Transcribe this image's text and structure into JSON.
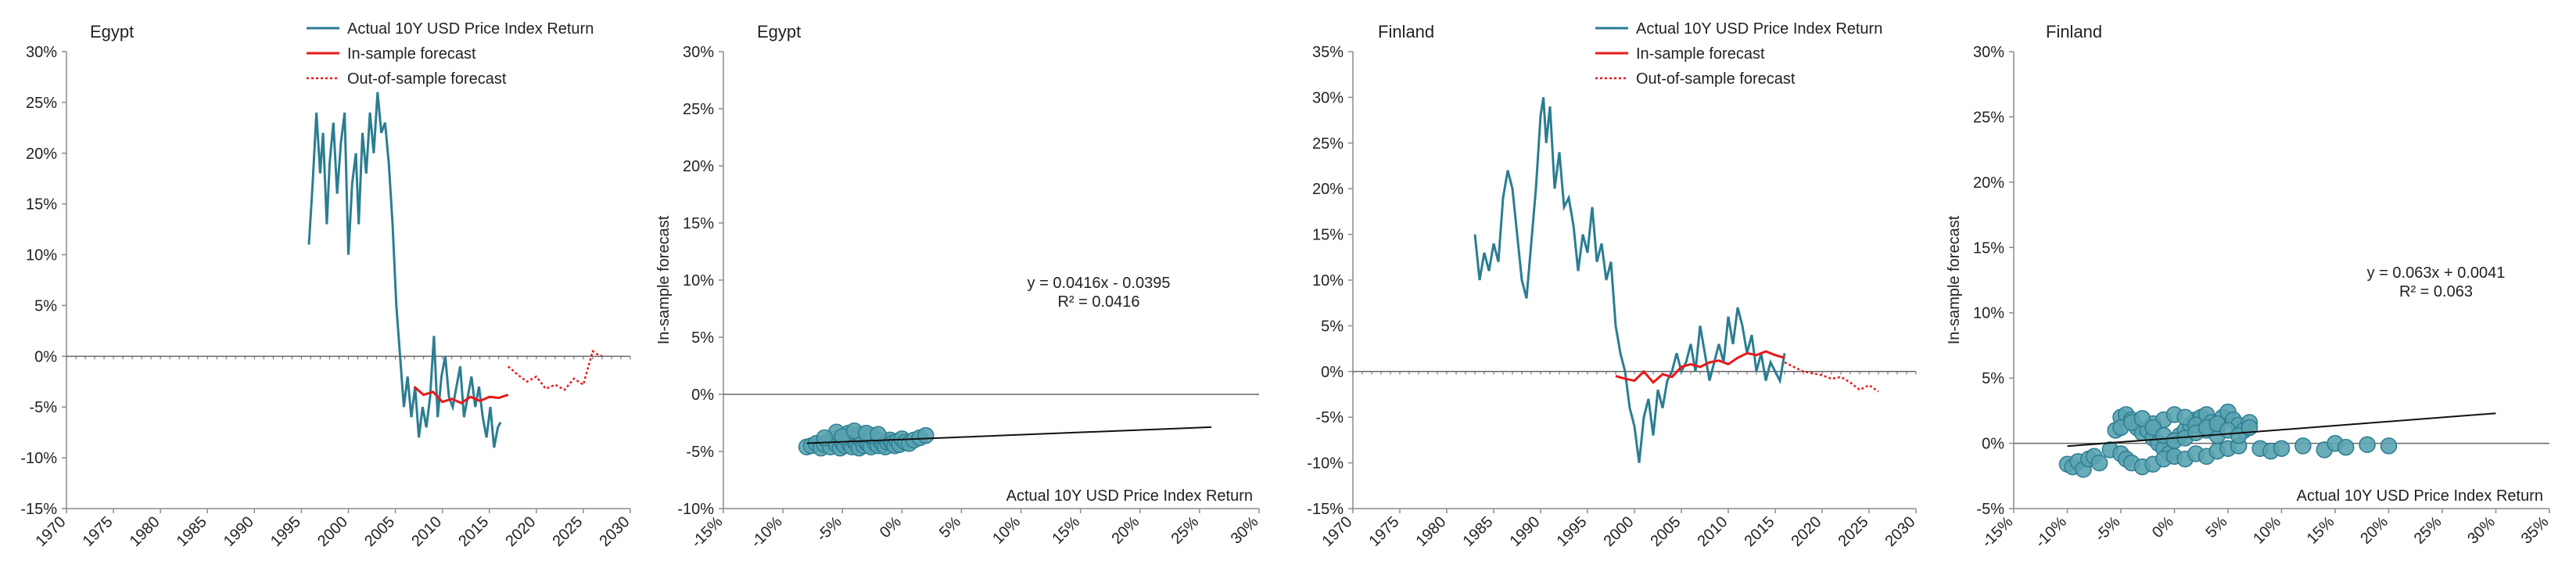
{
  "colors": {
    "actual": "#2b7d92",
    "in_sample": "#e8191b",
    "out_sample": "#e8191b",
    "fit": "#111111",
    "axis": "#8c8c8c"
  },
  "chart_data": [
    {
      "type": "line",
      "title": "Egypt",
      "xlim": [
        1970,
        2030
      ],
      "xticks": [
        1970,
        1975,
        1980,
        1985,
        1990,
        1995,
        2000,
        2005,
        2010,
        2015,
        2020,
        2025,
        2030
      ],
      "xtick_labels": [
        "1970",
        "1975",
        "1980",
        "1985",
        "1990",
        "1995",
        "2000",
        "2005",
        "2010",
        "2015",
        "2020",
        "2025",
        "2030"
      ],
      "ylim": [
        -0.15,
        0.3
      ],
      "yticks": [
        -0.15,
        -0.1,
        -0.05,
        0,
        0.05,
        0.1,
        0.15,
        0.2,
        0.25,
        0.3
      ],
      "ytick_labels": [
        "-15%",
        "-10%",
        "-5%",
        "0%",
        "5%",
        "10%",
        "15%",
        "20%",
        "25%",
        "30%"
      ],
      "legend": [
        "Actual 10Y USD Price Index Return",
        "In-sample forecast",
        "Out-of-sample forecast"
      ],
      "series": [
        {
          "name": "Actual 10Y USD Price Index Return",
          "style": "actual",
          "x": [
            1995.8,
            1996.2,
            1996.6,
            1997.0,
            1997.3,
            1997.7,
            1998.0,
            1998.4,
            1998.8,
            1999.2,
            1999.6,
            2000.0,
            2000.4,
            2000.8,
            2001.1,
            2001.5,
            2001.9,
            2002.3,
            2002.7,
            2003.1,
            2003.5,
            2003.9,
            2004.3,
            2004.7,
            2005.1,
            2005.5,
            2005.9,
            2006.3,
            2006.7,
            2007.1,
            2007.5,
            2007.9,
            2008.3,
            2008.7,
            2009.1,
            2009.5,
            2009.9,
            2010.3,
            2010.7,
            2011.1,
            2011.5,
            2011.9,
            2012.3,
            2012.7,
            2013.1,
            2013.5,
            2013.9,
            2014.3,
            2014.7,
            2015.1,
            2015.5,
            2015.9,
            2016.2
          ],
          "y": [
            0.11,
            0.17,
            0.24,
            0.18,
            0.22,
            0.13,
            0.19,
            0.23,
            0.16,
            0.21,
            0.24,
            0.1,
            0.17,
            0.2,
            0.13,
            0.22,
            0.18,
            0.24,
            0.2,
            0.26,
            0.22,
            0.23,
            0.19,
            0.13,
            0.05,
            0.0,
            -0.05,
            -0.02,
            -0.06,
            -0.03,
            -0.08,
            -0.05,
            -0.07,
            -0.04,
            0.02,
            -0.06,
            -0.02,
            0.0,
            -0.04,
            -0.05,
            -0.03,
            -0.01,
            -0.06,
            -0.04,
            -0.02,
            -0.05,
            -0.03,
            -0.06,
            -0.08,
            -0.05,
            -0.09,
            -0.07,
            -0.065
          ]
        },
        {
          "name": "In-sample forecast",
          "style": "in",
          "x": [
            2007.0,
            2008.0,
            2009.0,
            2010.0,
            2011.0,
            2012.0,
            2013.0,
            2014.0,
            2015.0,
            2016.0,
            2017.0
          ],
          "y": [
            -0.03,
            -0.038,
            -0.035,
            -0.045,
            -0.042,
            -0.046,
            -0.04,
            -0.044,
            -0.04,
            -0.041,
            -0.038
          ]
        },
        {
          "name": "Out-of-sample forecast",
          "style": "out",
          "x": [
            2017.0,
            2018.0,
            2019.0,
            2020.0,
            2021.0,
            2022.0,
            2023.0,
            2024.0,
            2025.0,
            2026.0,
            2026.5,
            2027.0
          ],
          "y": [
            -0.01,
            -0.018,
            -0.025,
            -0.02,
            -0.032,
            -0.028,
            -0.033,
            -0.022,
            -0.028,
            0.005,
            0.002,
            0.0
          ]
        }
      ]
    },
    {
      "type": "scatter",
      "title": "Egypt",
      "xlim": [
        -0.15,
        0.3
      ],
      "xticks": [
        -0.15,
        -0.1,
        -0.05,
        0,
        0.05,
        0.1,
        0.15,
        0.2,
        0.25,
        0.3
      ],
      "xtick_labels": [
        "-15%",
        "-10%",
        "-5%",
        "0%",
        "5%",
        "10%",
        "15%",
        "20%",
        "25%",
        "30%"
      ],
      "ylim": [
        -0.1,
        0.3
      ],
      "yticks": [
        -0.1,
        -0.05,
        0,
        0.05,
        0.1,
        0.15,
        0.2,
        0.25,
        0.3
      ],
      "ytick_labels": [
        "-10%",
        "-5%",
        "0%",
        "5%",
        "10%",
        "15%",
        "20%",
        "25%",
        "30%"
      ],
      "xlabel": "Actual 10Y USD Price Index Return",
      "ylabel": "In-sample forecast",
      "equation": "y = 0.0416x - 0.0395",
      "r2": "R² = 0.0416",
      "trend": {
        "slope": 0.0416,
        "intercept": -0.0395,
        "x_range": [
          -0.08,
          0.26
        ]
      },
      "points": {
        "x": [
          -0.08,
          -0.076,
          -0.072,
          -0.068,
          -0.065,
          -0.062,
          -0.06,
          -0.058,
          -0.055,
          -0.052,
          -0.05,
          -0.048,
          -0.046,
          -0.044,
          -0.042,
          -0.04,
          -0.038,
          -0.036,
          -0.034,
          -0.032,
          -0.03,
          -0.028,
          -0.026,
          -0.024,
          -0.022,
          -0.02,
          -0.018,
          -0.016,
          -0.014,
          -0.012,
          -0.01,
          -0.008,
          -0.006,
          -0.004,
          -0.002,
          0.0,
          0.003,
          0.006,
          0.01,
          0.015,
          0.02,
          -0.055,
          -0.045,
          -0.035,
          -0.025,
          -0.065,
          -0.05,
          -0.04,
          -0.03,
          -0.02
        ],
        "y": [
          -0.046,
          -0.045,
          -0.043,
          -0.047,
          -0.044,
          -0.041,
          -0.046,
          -0.039,
          -0.044,
          -0.047,
          -0.042,
          -0.045,
          -0.038,
          -0.044,
          -0.046,
          -0.041,
          -0.043,
          -0.047,
          -0.04,
          -0.045,
          -0.042,
          -0.044,
          -0.046,
          -0.039,
          -0.043,
          -0.045,
          -0.041,
          -0.044,
          -0.046,
          -0.042,
          -0.04,
          -0.043,
          -0.045,
          -0.041,
          -0.044,
          -0.039,
          -0.042,
          -0.043,
          -0.04,
          -0.038,
          -0.036,
          -0.033,
          -0.034,
          -0.035,
          -0.036,
          -0.038,
          -0.037,
          -0.032,
          -0.034,
          -0.035
        ]
      }
    },
    {
      "type": "line",
      "title": "Finland",
      "xlim": [
        1970,
        2030
      ],
      "xticks": [
        1970,
        1975,
        1980,
        1985,
        1990,
        1995,
        2000,
        2005,
        2010,
        2015,
        2020,
        2025,
        2030
      ],
      "xtick_labels": [
        "1970",
        "1975",
        "1980",
        "1985",
        "1990",
        "1995",
        "2000",
        "2005",
        "2010",
        "2015",
        "2020",
        "2025",
        "2030"
      ],
      "ylim": [
        -0.15,
        0.35
      ],
      "yticks": [
        -0.15,
        -0.1,
        -0.05,
        0,
        0.05,
        0.1,
        0.15,
        0.2,
        0.25,
        0.3,
        0.35
      ],
      "ytick_labels": [
        "-15%",
        "-10%",
        "-5%",
        "0%",
        "5%",
        "10%",
        "15%",
        "20%",
        "25%",
        "30%",
        "35%"
      ],
      "legend": [
        "Actual 10Y USD Price Index Return",
        "In-sample forecast",
        "Out-of-sample forecast"
      ],
      "series": [
        {
          "name": "Actual 10Y USD Price Index Return",
          "style": "actual",
          "x": [
            1983.0,
            1983.5,
            1984.0,
            1984.5,
            1985.0,
            1985.5,
            1986.0,
            1986.5,
            1987.0,
            1987.5,
            1988.0,
            1988.5,
            1989.0,
            1989.5,
            1990.0,
            1990.3,
            1990.6,
            1991.0,
            1991.5,
            1992.0,
            1992.5,
            1993.0,
            1993.5,
            1994.0,
            1994.5,
            1995.0,
            1995.5,
            1996.0,
            1996.5,
            1997.0,
            1997.5,
            1998.0,
            1998.5,
            1999.0,
            1999.5,
            2000.0,
            2000.5,
            2001.0,
            2001.5,
            2002.0,
            2002.5,
            2003.0,
            2003.5,
            2004.0,
            2004.5,
            2005.0,
            2005.5,
            2006.0,
            2006.5,
            2007.0,
            2007.5,
            2008.0,
            2008.5,
            2009.0,
            2009.5,
            2010.0,
            2010.5,
            2011.0,
            2011.5,
            2012.0,
            2012.5,
            2013.0,
            2013.5,
            2014.0,
            2014.5,
            2015.0,
            2015.5,
            2016.0
          ],
          "y": [
            0.15,
            0.1,
            0.13,
            0.11,
            0.14,
            0.12,
            0.19,
            0.22,
            0.2,
            0.15,
            0.1,
            0.08,
            0.14,
            0.2,
            0.28,
            0.3,
            0.25,
            0.29,
            0.2,
            0.24,
            0.18,
            0.19,
            0.16,
            0.11,
            0.15,
            0.13,
            0.18,
            0.12,
            0.14,
            0.1,
            0.12,
            0.05,
            0.02,
            0.0,
            -0.04,
            -0.06,
            -0.1,
            -0.05,
            -0.03,
            -0.07,
            -0.02,
            -0.04,
            -0.01,
            0.0,
            0.02,
            0.0,
            0.01,
            0.03,
            0.0,
            0.05,
            0.02,
            -0.01,
            0.01,
            0.03,
            0.01,
            0.06,
            0.03,
            0.07,
            0.05,
            0.02,
            0.04,
            0.0,
            0.02,
            -0.01,
            0.01,
            0.0,
            -0.01,
            0.02
          ]
        },
        {
          "name": "In-sample forecast",
          "style": "in",
          "x": [
            1998.0,
            1999.0,
            2000.0,
            2001.0,
            2002.0,
            2003.0,
            2004.0,
            2005.0,
            2006.0,
            2007.0,
            2008.0,
            2009.0,
            2010.0,
            2011.0,
            2012.0,
            2013.0,
            2014.0,
            2015.0,
            2016.0
          ],
          "y": [
            -0.005,
            -0.008,
            -0.01,
            0.0,
            -0.012,
            -0.003,
            -0.006,
            0.005,
            0.008,
            0.005,
            0.01,
            0.012,
            0.008,
            0.015,
            0.02,
            0.018,
            0.022,
            0.018,
            0.015
          ]
        },
        {
          "name": "Out-of-sample forecast",
          "style": "out",
          "x": [
            2016.0,
            2017.0,
            2018.0,
            2019.0,
            2020.0,
            2021.0,
            2022.0,
            2023.0,
            2024.0,
            2025.0,
            2026.0
          ],
          "y": [
            0.01,
            0.005,
            0.0,
            -0.002,
            -0.004,
            -0.008,
            -0.006,
            -0.012,
            -0.02,
            -0.015,
            -0.022
          ]
        }
      ]
    },
    {
      "type": "scatter",
      "title": "Finland",
      "xlim": [
        -0.15,
        0.35
      ],
      "xticks": [
        -0.15,
        -0.1,
        -0.05,
        0,
        0.05,
        0.1,
        0.15,
        0.2,
        0.25,
        0.3,
        0.35
      ],
      "xtick_labels": [
        "-15%",
        "-10%",
        "-5%",
        "0%",
        "5%",
        "10%",
        "15%",
        "20%",
        "25%",
        "30%",
        "35%"
      ],
      "ylim": [
        -0.05,
        0.3
      ],
      "yticks": [
        -0.05,
        0,
        0.05,
        0.1,
        0.15,
        0.2,
        0.25,
        0.3
      ],
      "ytick_labels": [
        "-5%",
        "0%",
        "5%",
        "10%",
        "15%",
        "20%",
        "25%",
        "30%"
      ],
      "xlabel": "Actual 10Y USD Price Index Return",
      "ylabel": "In-sample forecast",
      "equation": "y = 0.063x + 0.0041",
      "r2": "R² = 0.063",
      "trend": {
        "slope": 0.063,
        "intercept": 0.0041,
        "x_range": [
          -0.1,
          0.3
        ]
      },
      "points": {
        "x": [
          -0.1,
          -0.095,
          -0.09,
          -0.085,
          -0.08,
          -0.075,
          -0.07,
          -0.06,
          -0.055,
          -0.05,
          -0.045,
          -0.04,
          -0.035,
          -0.03,
          -0.025,
          -0.02,
          -0.015,
          -0.01,
          -0.005,
          0.0,
          0.005,
          0.01,
          0.015,
          0.02,
          0.025,
          0.03,
          0.035,
          0.04,
          0.045,
          0.05,
          0.055,
          0.06,
          0.065,
          0.07,
          -0.05,
          -0.045,
          -0.04,
          -0.03,
          -0.02,
          -0.01,
          0.0,
          0.01,
          0.02,
          0.03,
          0.04,
          0.05,
          -0.02,
          -0.01,
          0.0,
          0.01,
          0.02,
          0.03,
          0.04,
          0.06,
          0.08,
          0.09,
          0.1,
          0.12,
          0.14,
          0.15,
          0.16,
          0.18,
          0.2,
          -0.05,
          -0.04,
          -0.03,
          -0.02,
          -0.01,
          0.0,
          0.01,
          0.02,
          0.03,
          0.04,
          0.05,
          0.06,
          0.07
        ],
        "y": [
          -0.016,
          -0.018,
          -0.014,
          -0.02,
          -0.012,
          -0.01,
          -0.015,
          -0.005,
          0.01,
          0.02,
          0.022,
          0.018,
          0.012,
          0.008,
          0.01,
          0.004,
          0.0,
          -0.004,
          -0.008,
          0.002,
          0.006,
          0.01,
          0.014,
          0.018,
          0.02,
          0.022,
          0.016,
          0.012,
          0.02,
          0.024,
          0.018,
          0.014,
          0.01,
          0.016,
          -0.008,
          -0.012,
          -0.015,
          -0.018,
          -0.016,
          -0.012,
          -0.01,
          -0.012,
          -0.008,
          -0.01,
          -0.006,
          -0.004,
          0.015,
          0.018,
          0.022,
          0.02,
          0.014,
          0.01,
          0.006,
          -0.002,
          -0.004,
          -0.006,
          -0.004,
          -0.002,
          -0.005,
          0.0,
          -0.003,
          -0.001,
          -0.002,
          0.012,
          0.016,
          0.019,
          0.012,
          0.006,
          0.002,
          0.004,
          0.008,
          0.012,
          0.015,
          0.01,
          0.006,
          0.012
        ]
      }
    }
  ]
}
